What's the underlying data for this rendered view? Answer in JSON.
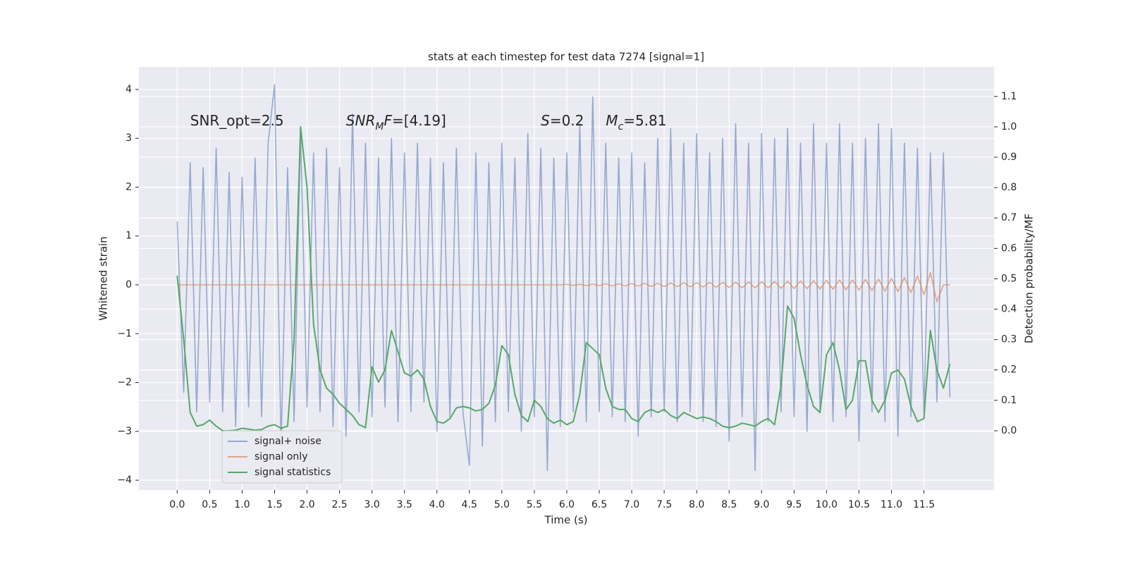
{
  "chart_data": {
    "type": "line",
    "title": "stats at each timestep for test data 7274 [signal=1]",
    "xlabel": "Time (s)",
    "ylabel": "Whitened strain",
    "y2label": "Detection probability/MF",
    "xlim": [
      -0.59,
      12.58
    ],
    "ylim": [
      -4.2,
      4.46
    ],
    "y2lim": [
      -0.195,
      1.197
    ],
    "xticks": [
      {
        "value": 0,
        "label": "0.0"
      },
      0.5,
      {
        "value": 1,
        "label": "1.0"
      },
      1.5,
      {
        "value": 2,
        "label": "2.0"
      },
      2.5,
      {
        "value": 3,
        "label": "3.0"
      },
      3.5,
      {
        "value": 4,
        "label": "4.0"
      },
      4.5,
      {
        "value": 5,
        "label": "5.0"
      },
      5.5,
      {
        "value": 6,
        "label": "6.0"
      },
      6.5,
      {
        "value": 7,
        "label": "7.0"
      },
      7.5,
      {
        "value": 8,
        "label": "8.0"
      },
      8.5,
      {
        "value": 9,
        "label": "9.0"
      },
      9.5,
      {
        "value": 10,
        "label": "10.0"
      },
      10.5,
      {
        "value": 11,
        "label": "11.0"
      },
      11.5
    ],
    "yticks": [
      {
        "value": -4,
        "label": "−4"
      },
      {
        "value": -3,
        "label": "−3"
      },
      {
        "value": -2,
        "label": "−2"
      },
      {
        "value": -1,
        "label": "−1"
      },
      0,
      1,
      2,
      3,
      4
    ],
    "y2ticks": [
      {
        "value": 0,
        "label": "0.0"
      },
      0.1,
      0.2,
      0.3,
      0.4,
      0.5,
      0.6,
      0.7,
      0.8,
      0.9,
      {
        "value": 1,
        "label": "1.0"
      },
      1.1
    ],
    "grid": true,
    "legend": "lower left",
    "x": [
      0,
      0.1,
      0.2,
      0.3,
      0.4,
      0.5,
      0.6,
      0.7,
      0.8,
      0.9,
      1,
      1.1,
      1.2,
      1.3,
      1.4,
      1.5,
      1.6,
      1.7,
      1.8,
      1.9,
      2,
      2.1,
      2.2,
      2.3,
      2.4,
      2.5,
      2.6,
      2.7,
      2.8,
      2.9,
      3,
      3.1,
      3.2,
      3.3,
      3.4,
      3.5,
      3.6,
      3.7,
      3.8,
      3.9,
      4,
      4.1,
      4.2,
      4.3,
      4.4,
      4.5,
      4.6,
      4.7,
      4.8,
      4.9,
      5,
      5.1,
      5.2,
      5.3,
      5.4,
      5.5,
      5.6,
      5.7,
      5.8,
      5.9,
      6,
      6.1,
      6.2,
      6.3,
      6.4,
      6.5,
      6.6,
      6.7,
      6.8,
      6.9,
      7,
      7.1,
      7.2,
      7.3,
      7.4,
      7.5,
      7.6,
      7.7,
      7.8,
      7.9,
      8,
      8.1,
      8.2,
      8.3,
      8.4,
      8.5,
      8.6,
      8.7,
      8.8,
      8.9,
      9,
      9.1,
      9.2,
      9.3,
      9.4,
      9.5,
      9.6,
      9.7,
      9.8,
      9.9,
      10,
      10.1,
      10.2,
      10.3,
      10.4,
      10.5,
      10.6,
      10.7,
      10.8,
      10.9,
      11,
      11.1,
      11.2,
      11.3,
      11.4,
      11.5,
      11.6,
      11.7,
      11.8,
      11.9
    ],
    "series": [
      {
        "name": "signal+ noise",
        "color": "#4c72b0",
        "alpha": 0.55,
        "axis": "y",
        "values": [
          1.3,
          -2.2,
          2.5,
          -2.6,
          2.4,
          -2.4,
          2.8,
          -2.6,
          2.3,
          -2.9,
          2.2,
          -2.5,
          2.6,
          -2.7,
          2.9,
          4.1,
          -3.3,
          2.4,
          -2.8,
          3.1,
          -2.5,
          2.7,
          -2.6,
          2.8,
          -2.9,
          2.4,
          -3.1,
          3.5,
          -2.6,
          2.9,
          -2.7,
          2.6,
          -2.5,
          3.0,
          -2.8,
          2.7,
          -2.6,
          2.9,
          -2.4,
          2.6,
          -3.0,
          2.5,
          -2.7,
          2.8,
          -2.6,
          -3.7,
          2.7,
          -3.3,
          2.5,
          -2.8,
          2.9,
          -2.6,
          2.6,
          -3.0,
          3.1,
          -2.7,
          2.8,
          -3.8,
          2.6,
          -2.9,
          2.7,
          -2.6,
          3.3,
          -2.8,
          3.85,
          -2.6,
          2.9,
          -2.7,
          2.6,
          -2.8,
          2.7,
          -3.1,
          2.5,
          -2.7,
          3.0,
          -2.6,
          3.2,
          -2.8,
          2.9,
          -2.6,
          3.1,
          -2.8,
          2.7,
          -2.9,
          3.0,
          -3.2,
          3.3,
          -2.7,
          2.9,
          -3.8,
          3.1,
          -2.8,
          3.0,
          -2.6,
          3.2,
          -2.7,
          2.9,
          -3.0,
          3.3,
          -2.6,
          2.9,
          -2.8,
          3.3,
          -2.7,
          2.9,
          -3.2,
          3.0,
          -2.6,
          3.3,
          -2.8,
          3.2,
          -3.1,
          2.9,
          -2.7,
          2.8,
          -2.6,
          2.7,
          -2.4,
          2.7,
          -2.3
        ]
      },
      {
        "name": "signal only",
        "color": "#dd8452",
        "alpha": 0.7,
        "axis": "y",
        "values": [
          0,
          0,
          0,
          0,
          0,
          0,
          0,
          0,
          0,
          0,
          0,
          0,
          0,
          0,
          0,
          0,
          0,
          0,
          0,
          0,
          0,
          0,
          0,
          0,
          0,
          0,
          0,
          0,
          0,
          0,
          0,
          0,
          0,
          0,
          0,
          0,
          0,
          0,
          0,
          0,
          0,
          0,
          0,
          0,
          0,
          0,
          0,
          0,
          0,
          0,
          0,
          0,
          0,
          0,
          0,
          0,
          0,
          0,
          0,
          0,
          0.01,
          -0.01,
          0.01,
          -0.015,
          0.015,
          -0.015,
          0.02,
          -0.02,
          0.02,
          -0.02,
          0.025,
          -0.025,
          0.03,
          -0.03,
          0.03,
          -0.035,
          0.035,
          -0.035,
          0.04,
          -0.04,
          0.045,
          -0.045,
          0.05,
          -0.05,
          0.05,
          -0.055,
          0.055,
          -0.06,
          0.06,
          -0.06,
          0.065,
          -0.065,
          0.07,
          -0.07,
          0.075,
          -0.075,
          0.08,
          -0.08,
          0.085,
          -0.085,
          0.09,
          -0.09,
          0.1,
          -0.1,
          0.1,
          -0.11,
          0.11,
          -0.12,
          0.12,
          -0.13,
          0.13,
          -0.14,
          0.15,
          -0.16,
          0.18,
          -0.2,
          0.25,
          -0.35,
          0,
          0
        ]
      },
      {
        "name": "signal statistics",
        "color": "#55a868",
        "alpha": 1,
        "axis": "y2",
        "values": [
          0.51,
          0.3,
          0.06,
          0.015,
          0.02,
          0.035,
          0.015,
          0.0,
          0.0,
          0.002,
          0.008,
          0.005,
          0.002,
          0.004,
          0.015,
          0.02,
          0.008,
          0.015,
          0.3,
          1.0,
          0.8,
          0.35,
          0.2,
          0.14,
          0.12,
          0.09,
          0.07,
          0.05,
          0.02,
          0.01,
          0.21,
          0.16,
          0.2,
          0.33,
          0.26,
          0.19,
          0.18,
          0.2,
          0.17,
          0.08,
          0.03,
          0.025,
          0.04,
          0.075,
          0.08,
          0.075,
          0.065,
          0.07,
          0.09,
          0.15,
          0.28,
          0.25,
          0.12,
          0.05,
          0.03,
          0.1,
          0.08,
          0.04,
          0.025,
          0.035,
          0.02,
          0.03,
          0.12,
          0.29,
          0.27,
          0.25,
          0.14,
          0.08,
          0.07,
          0.07,
          0.04,
          0.03,
          0.06,
          0.07,
          0.06,
          0.07,
          0.05,
          0.04,
          0.06,
          0.05,
          0.04,
          0.045,
          0.04,
          0.03,
          0.015,
          0.01,
          0.015,
          0.025,
          0.02,
          0.015,
          0.03,
          0.04,
          0.02,
          0.15,
          0.41,
          0.37,
          0.25,
          0.15,
          0.08,
          0.06,
          0.25,
          0.29,
          0.2,
          0.07,
          0.1,
          0.23,
          0.23,
          0.1,
          0.06,
          0.1,
          0.19,
          0.2,
          0.17,
          0.08,
          0.03,
          0.04,
          0.33,
          0.2,
          0.14,
          0.22
        ]
      }
    ],
    "annotations": [
      {
        "x": 0.2,
        "y": 3.35,
        "parts": [
          {
            "text": "SNR_opt=2.5"
          }
        ]
      },
      {
        "x": 2.6,
        "y": 3.35,
        "parts": [
          {
            "text": "SNR",
            "italic": true
          },
          {
            "text": "M",
            "italic": true,
            "sub": true
          },
          {
            "text": "F",
            "italic": true
          },
          {
            "text": "=[4.19]"
          }
        ]
      },
      {
        "x": 5.6,
        "y": 3.35,
        "parts": [
          {
            "text": "S",
            "italic": true
          },
          {
            "text": "=0.2"
          }
        ]
      },
      {
        "x": 6.6,
        "y": 3.35,
        "parts": [
          {
            "text": "M",
            "italic": true
          },
          {
            "text": "c",
            "italic": true,
            "sub": true
          },
          {
            "text": "=5.81"
          }
        ]
      }
    ]
  }
}
